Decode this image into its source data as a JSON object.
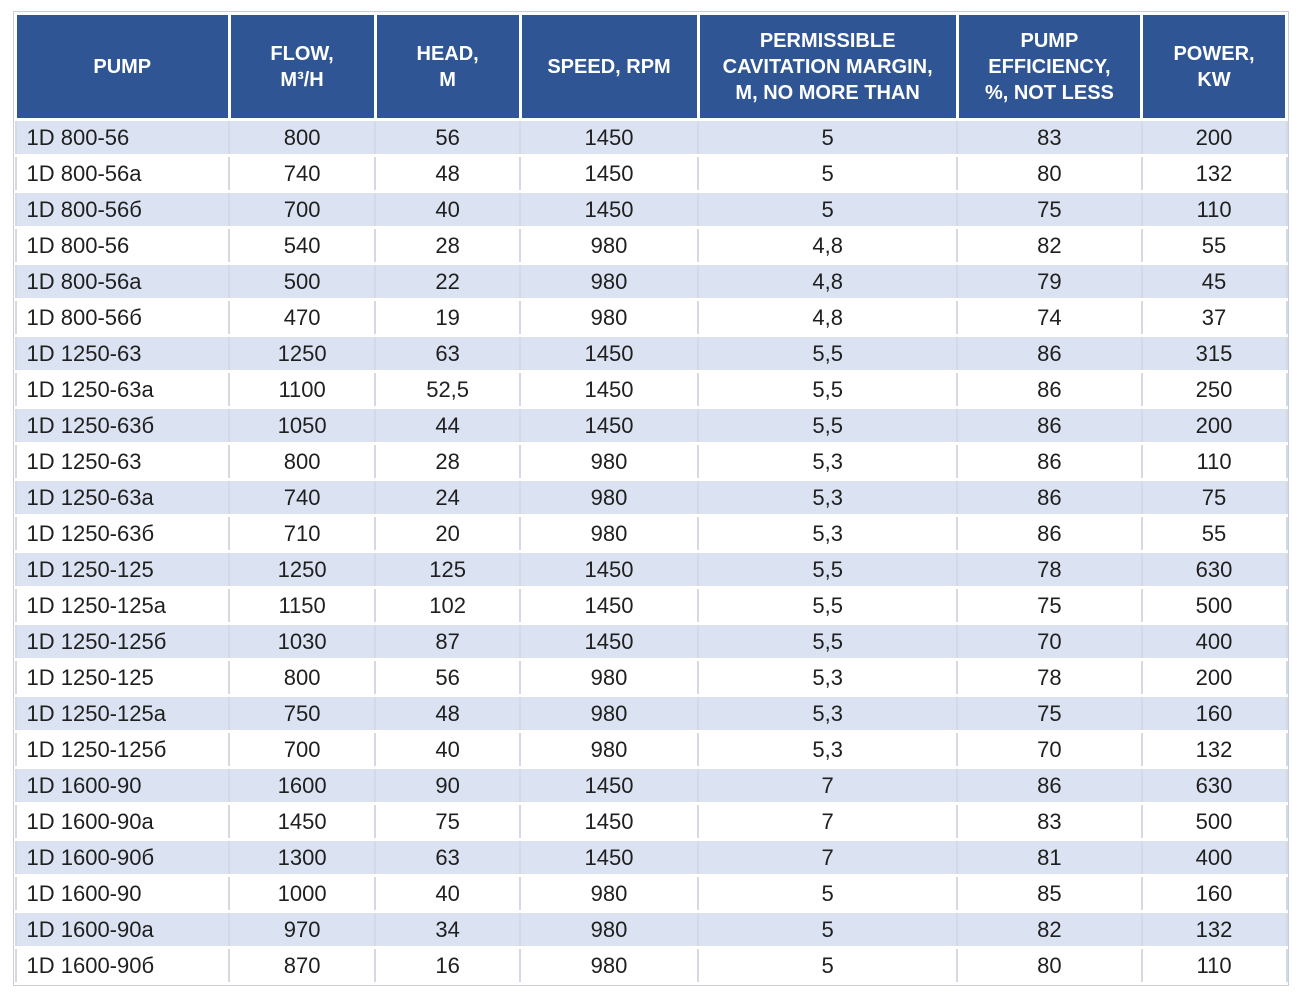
{
  "table": {
    "columns": [
      {
        "key": "pump",
        "label": "PUMP"
      },
      {
        "key": "flow",
        "label": "FLOW,\nM³/H"
      },
      {
        "key": "head",
        "label": "HEAD,\nM"
      },
      {
        "key": "speed",
        "label": "SPEED, RPM"
      },
      {
        "key": "cavitation",
        "label": "PERMISSIBLE\nCAVITATION MARGIN,\nM, NO MORE THAN"
      },
      {
        "key": "efficiency",
        "label": "PUMP\nEFFICIENCY,\n%, NOT LESS"
      },
      {
        "key": "power",
        "label": "POWER,\nKW"
      }
    ],
    "rows": [
      [
        "1D 800-56",
        "800",
        "56",
        "1450",
        "5",
        "83",
        "200"
      ],
      [
        "1D 800-56a",
        "740",
        "48",
        "1450",
        "5",
        "80",
        "132"
      ],
      [
        "1D 800-56б",
        "700",
        "40",
        "1450",
        "5",
        "75",
        "110"
      ],
      [
        "1D 800-56",
        "540",
        "28",
        "980",
        "4,8",
        "82",
        "55"
      ],
      [
        "1D 800-56a",
        "500",
        "22",
        "980",
        "4,8",
        "79",
        "45"
      ],
      [
        "1D 800-56б",
        "470",
        "19",
        "980",
        "4,8",
        "74",
        "37"
      ],
      [
        "1D 1250-63",
        "1250",
        "63",
        "1450",
        "5,5",
        "86",
        "315"
      ],
      [
        "1D 1250-63a",
        "1100",
        "52,5",
        "1450",
        "5,5",
        "86",
        "250"
      ],
      [
        "1D 1250-63б",
        "1050",
        "44",
        "1450",
        "5,5",
        "86",
        "200"
      ],
      [
        "1D 1250-63",
        "800",
        "28",
        "980",
        "5,3",
        "86",
        "110"
      ],
      [
        "1D 1250-63a",
        "740",
        "24",
        "980",
        "5,3",
        "86",
        "75"
      ],
      [
        "1D 1250-63б",
        "710",
        "20",
        "980",
        "5,3",
        "86",
        "55"
      ],
      [
        "1D 1250-125",
        "1250",
        "125",
        "1450",
        "5,5",
        "78",
        "630"
      ],
      [
        "1D 1250-125a",
        "1150",
        "102",
        "1450",
        "5,5",
        "75",
        "500"
      ],
      [
        "1D 1250-125б",
        "1030",
        "87",
        "1450",
        "5,5",
        "70",
        "400"
      ],
      [
        "1D 1250-125",
        "800",
        "56",
        "980",
        "5,3",
        "78",
        "200"
      ],
      [
        "1D 1250-125a",
        "750",
        "48",
        "980",
        "5,3",
        "75",
        "160"
      ],
      [
        "1D 1250-125б",
        "700",
        "40",
        "980",
        "5,3",
        "70",
        "132"
      ],
      [
        "1D 1600-90",
        "1600",
        "90",
        "1450",
        "7",
        "86",
        "630"
      ],
      [
        "1D 1600-90a",
        "1450",
        "75",
        "1450",
        "7",
        "83",
        "500"
      ],
      [
        "1D 1600-90б",
        "1300",
        "63",
        "1450",
        "7",
        "81",
        "400"
      ],
      [
        "1D 1600-90",
        "1000",
        "40",
        "980",
        "5",
        "85",
        "160"
      ],
      [
        "1D 1600-90a",
        "970",
        "34",
        "980",
        "5",
        "82",
        "132"
      ],
      [
        "1D 1600-90б",
        "870",
        "16",
        "980",
        "5",
        "80",
        "110"
      ]
    ]
  },
  "colors": {
    "header_bg": "#2F5594",
    "header_text": "#FFFFFF",
    "row_alt_bg": "#DBE2F1",
    "row_bg": "#FFFFFF",
    "text": "#1F1F1F",
    "grid_vertical": "#D4D9E3",
    "grid_horizontal": "#FFFFFF",
    "outer_border": "#C8CDD8"
  }
}
